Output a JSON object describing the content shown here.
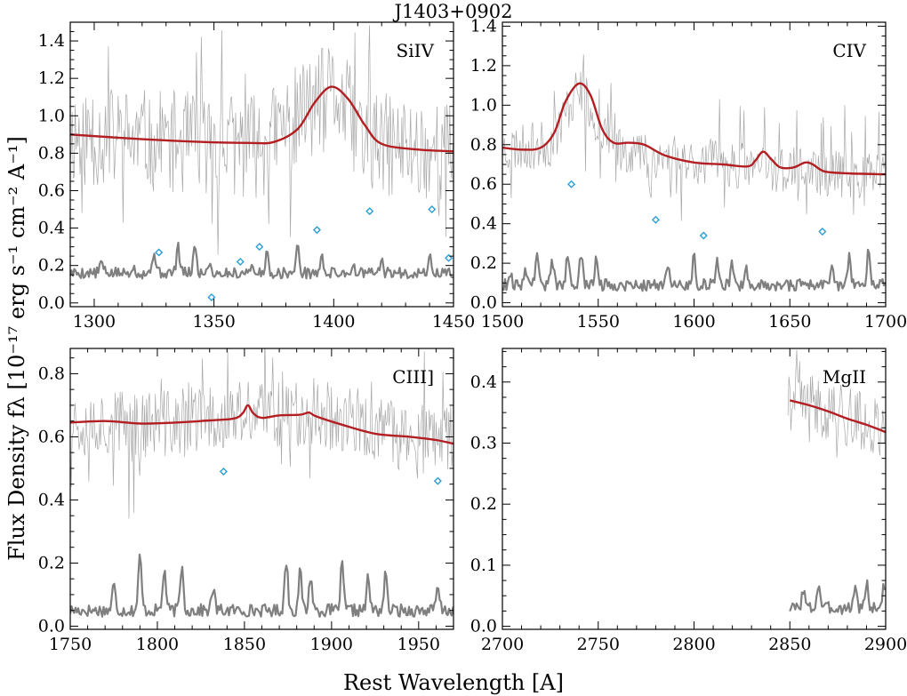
{
  "figure": {
    "title": "J1403+0902",
    "xlabel": "Rest Wavelength [A]",
    "ylabel": "Flux Density fλ [10⁻¹⁷ erg s⁻¹ cm⁻² A⁻¹]"
  },
  "colors": {
    "spectrum": "#a8a8a8",
    "model": "#b21e22",
    "error": "#7f7f7f",
    "markers": "#2a9fd6",
    "axes": "#000000"
  },
  "chart_data": [
    {
      "type": "line",
      "label": "SiIV",
      "xlim": [
        1290,
        1450
      ],
      "ylim": [
        -0.02,
        1.5
      ],
      "xticks": [
        1300,
        1350,
        1400,
        1450
      ],
      "yticks": [
        0.0,
        0.2,
        0.4,
        0.6,
        0.8,
        1.0,
        1.2,
        1.4
      ],
      "ytick_labels": [
        "0.0",
        "0.2",
        "0.4",
        "0.6",
        "0.8",
        "1.0",
        "1.2",
        "1.4"
      ],
      "spectrum": {
        "range": [
          1290,
          1450
        ],
        "base": [
          [
            1290,
            0.9
          ],
          [
            1330,
            0.86
          ],
          [
            1370,
            0.84
          ],
          [
            1390,
            1.05
          ],
          [
            1400,
            1.12
          ],
          [
            1415,
            0.85
          ],
          [
            1450,
            0.8
          ]
        ],
        "noise": 0.28,
        "spikes": 0.3,
        "seed": 11
      },
      "model": [
        [
          1290,
          0.9
        ],
        [
          1320,
          0.875
        ],
        [
          1345,
          0.86
        ],
        [
          1365,
          0.855
        ],
        [
          1375,
          0.86
        ],
        [
          1385,
          0.93
        ],
        [
          1392,
          1.07
        ],
        [
          1399,
          1.155
        ],
        [
          1406,
          1.09
        ],
        [
          1413,
          0.95
        ],
        [
          1420,
          0.85
        ],
        [
          1435,
          0.82
        ],
        [
          1450,
          0.81
        ]
      ],
      "error": {
        "range": [
          1290,
          1450
        ],
        "base": 0.16,
        "noise": 0.03,
        "peaks": [
          [
            1303,
            0.22
          ],
          [
            1316,
            0.2
          ],
          [
            1325,
            0.28
          ],
          [
            1335,
            0.3
          ],
          [
            1342,
            0.3
          ],
          [
            1348,
            0.22
          ],
          [
            1365,
            0.2
          ],
          [
            1372,
            0.26
          ],
          [
            1385,
            0.3
          ],
          [
            1395,
            0.24
          ],
          [
            1408,
            0.2
          ],
          [
            1420,
            0.22
          ],
          [
            1440,
            0.24
          ]
        ],
        "seed": 5
      },
      "markers": [
        [
          1327,
          0.27
        ],
        [
          1349,
          0.03
        ],
        [
          1361,
          0.22
        ],
        [
          1369,
          0.3
        ],
        [
          1393,
          0.39
        ],
        [
          1415,
          0.49
        ],
        [
          1441,
          0.5
        ],
        [
          1448,
          0.24
        ]
      ]
    },
    {
      "type": "line",
      "label": "CIV",
      "xlim": [
        1500,
        1700
      ],
      "ylim": [
        -0.02,
        1.42
      ],
      "xticks": [
        1500,
        1550,
        1600,
        1650,
        1700
      ],
      "yticks": [
        0.0,
        0.2,
        0.4,
        0.6,
        0.8,
        1.0,
        1.2,
        1.4
      ],
      "ytick_labels": [
        "0.0",
        "0.2",
        "0.4",
        "0.6",
        "0.8",
        "1.0",
        "1.2",
        "1.4"
      ],
      "spectrum": {
        "range": [
          1500,
          1700
        ],
        "base": [
          [
            1500,
            0.78
          ],
          [
            1525,
            0.8
          ],
          [
            1540,
            1.1
          ],
          [
            1555,
            0.8
          ],
          [
            1580,
            0.74
          ],
          [
            1620,
            0.7
          ],
          [
            1660,
            0.66
          ],
          [
            1700,
            0.64
          ]
        ],
        "noise": 0.12,
        "spikes": 0.18,
        "seed": 23
      },
      "model": [
        [
          1500,
          0.785
        ],
        [
          1510,
          0.775
        ],
        [
          1520,
          0.785
        ],
        [
          1527,
          0.86
        ],
        [
          1533,
          1.02
        ],
        [
          1540,
          1.11
        ],
        [
          1546,
          1.05
        ],
        [
          1552,
          0.88
        ],
        [
          1558,
          0.81
        ],
        [
          1566,
          0.81
        ],
        [
          1574,
          0.8
        ],
        [
          1585,
          0.745
        ],
        [
          1600,
          0.71
        ],
        [
          1615,
          0.7
        ],
        [
          1628,
          0.69
        ],
        [
          1632,
          0.72
        ],
        [
          1636,
          0.765
        ],
        [
          1640,
          0.73
        ],
        [
          1645,
          0.685
        ],
        [
          1652,
          0.685
        ],
        [
          1658,
          0.71
        ],
        [
          1662,
          0.7
        ],
        [
          1668,
          0.665
        ],
        [
          1680,
          0.655
        ],
        [
          1700,
          0.65
        ]
      ],
      "error": {
        "range": [
          1500,
          1700
        ],
        "base": 0.09,
        "noise": 0.03,
        "peaks": [
          [
            1504,
            0.15
          ],
          [
            1512,
            0.18
          ],
          [
            1518,
            0.26
          ],
          [
            1526,
            0.22
          ],
          [
            1534,
            0.22
          ],
          [
            1541,
            0.24
          ],
          [
            1549,
            0.22
          ],
          [
            1586,
            0.2
          ],
          [
            1600,
            0.24
          ],
          [
            1612,
            0.22
          ],
          [
            1620,
            0.2
          ],
          [
            1627,
            0.18
          ],
          [
            1672,
            0.2
          ],
          [
            1681,
            0.24
          ],
          [
            1691,
            0.25
          ]
        ],
        "seed": 9
      },
      "markers": [
        [
          1536,
          0.6
        ],
        [
          1580,
          0.42
        ],
        [
          1605,
          0.34
        ],
        [
          1667,
          0.36
        ]
      ]
    },
    {
      "type": "line",
      "label": "CIII]",
      "xlim": [
        1750,
        1970
      ],
      "ylim": [
        -0.01,
        0.88
      ],
      "xticks": [
        1750,
        1800,
        1850,
        1900,
        1950
      ],
      "yticks": [
        0.0,
        0.2,
        0.4,
        0.6,
        0.8
      ],
      "ytick_labels": [
        "0.0",
        "0.2",
        "0.4",
        "0.6",
        "0.8"
      ],
      "spectrum": {
        "range": [
          1750,
          1970
        ],
        "base": [
          [
            1750,
            0.65
          ],
          [
            1800,
            0.64
          ],
          [
            1850,
            0.67
          ],
          [
            1890,
            0.68
          ],
          [
            1930,
            0.61
          ],
          [
            1970,
            0.58
          ]
        ],
        "noise": 0.11,
        "spikes": 0.15,
        "seed": 37
      },
      "model": [
        [
          1750,
          0.645
        ],
        [
          1770,
          0.65
        ],
        [
          1790,
          0.642
        ],
        [
          1810,
          0.645
        ],
        [
          1830,
          0.652
        ],
        [
          1844,
          0.658
        ],
        [
          1849,
          0.675
        ],
        [
          1852,
          0.7
        ],
        [
          1855,
          0.675
        ],
        [
          1860,
          0.66
        ],
        [
          1870,
          0.668
        ],
        [
          1882,
          0.67
        ],
        [
          1887,
          0.677
        ],
        [
          1891,
          0.665
        ],
        [
          1905,
          0.64
        ],
        [
          1925,
          0.61
        ],
        [
          1945,
          0.6
        ],
        [
          1960,
          0.59
        ],
        [
          1970,
          0.578
        ]
      ],
      "error": {
        "range": [
          1750,
          1970
        ],
        "base": 0.05,
        "noise": 0.02,
        "peaks": [
          [
            1775,
            0.13
          ],
          [
            1790,
            0.22
          ],
          [
            1804,
            0.18
          ],
          [
            1814,
            0.19
          ],
          [
            1832,
            0.12
          ],
          [
            1874,
            0.21
          ],
          [
            1882,
            0.17
          ],
          [
            1888,
            0.16
          ],
          [
            1906,
            0.19
          ],
          [
            1921,
            0.15
          ],
          [
            1931,
            0.16
          ],
          [
            1961,
            0.12
          ]
        ],
        "seed": 17
      },
      "markers": [
        [
          1838,
          0.49
        ],
        [
          1961,
          0.46
        ]
      ]
    },
    {
      "type": "line",
      "label": "MgII",
      "xlim": [
        2700,
        2900
      ],
      "ylim": [
        -0.005,
        0.455
      ],
      "xticks": [
        2700,
        2750,
        2800,
        2850,
        2900
      ],
      "yticks": [
        0.0,
        0.1,
        0.2,
        0.3,
        0.4
      ],
      "ytick_labels": [
        "0.0",
        "0.1",
        "0.2",
        "0.3",
        "0.4"
      ],
      "spectrum": {
        "range": [
          2849,
          2900
        ],
        "base": [
          [
            2849,
            0.37
          ],
          [
            2870,
            0.355
          ],
          [
            2900,
            0.32
          ]
        ],
        "noise": 0.05,
        "spikes": 0.06,
        "seed": 41
      },
      "model": [
        [
          2850,
          0.37
        ],
        [
          2860,
          0.362
        ],
        [
          2870,
          0.352
        ],
        [
          2880,
          0.34
        ],
        [
          2890,
          0.33
        ],
        [
          2900,
          0.318
        ]
      ],
      "error": {
        "range": [
          2850,
          2900
        ],
        "base": 0.03,
        "noise": 0.01,
        "peaks": [
          [
            2857,
            0.06
          ],
          [
            2865,
            0.07
          ],
          [
            2884,
            0.065
          ],
          [
            2890,
            0.07
          ],
          [
            2899,
            0.065
          ]
        ],
        "seed": 3
      },
      "markers": []
    }
  ]
}
